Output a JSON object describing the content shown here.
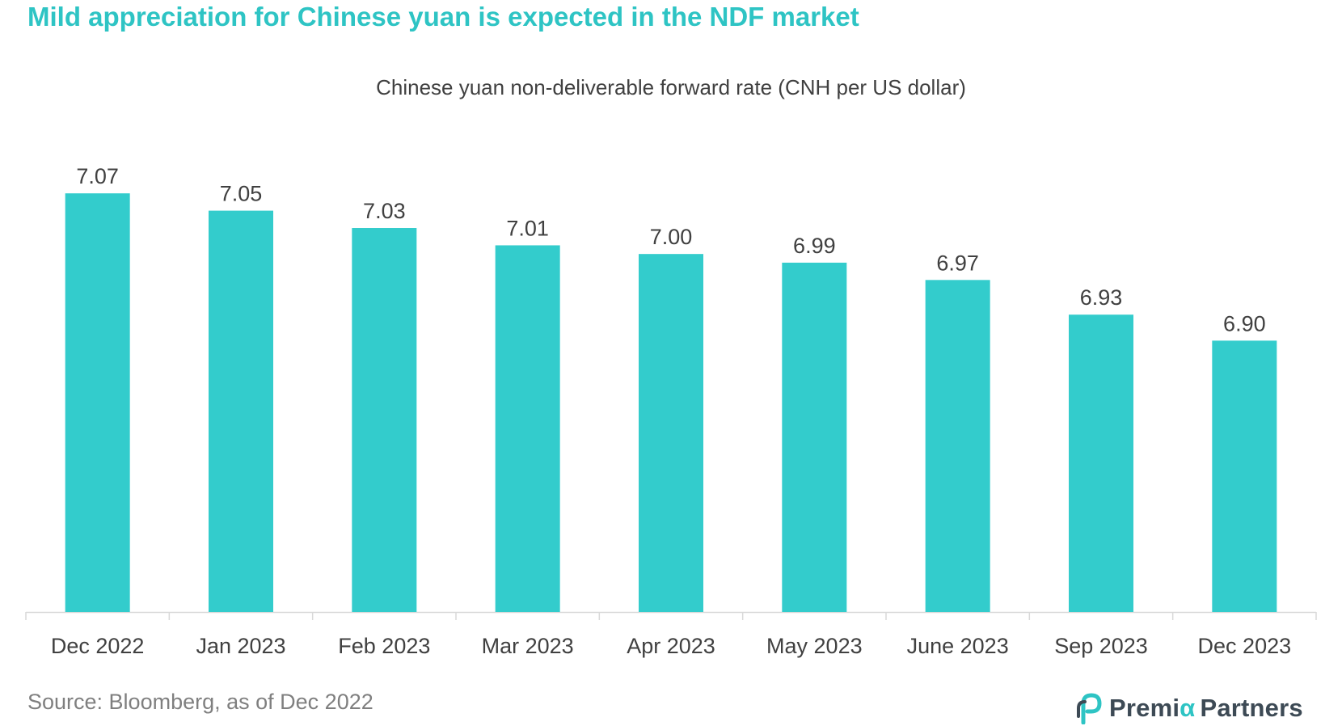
{
  "header": {
    "title": "Mild appreciation for Chinese yuan is expected in the NDF market"
  },
  "chart_data": {
    "type": "bar",
    "title": "Chinese yuan non-deliverable forward rate (CNH per US dollar)",
    "categories": [
      "Dec 2022",
      "Jan 2023",
      "Feb 2023",
      "Mar 2023",
      "Apr 2023",
      "May 2023",
      "June 2023",
      "Sep 2023",
      "Dec 2023"
    ],
    "values": [
      7.07,
      7.05,
      7.03,
      7.01,
      7.0,
      6.99,
      6.97,
      6.93,
      6.9
    ],
    "value_labels": [
      "7.07",
      "7.05",
      "7.03",
      "7.01",
      "7.00",
      "6.99",
      "6.97",
      "6.93",
      "6.90"
    ],
    "xlabel": "",
    "ylabel": "",
    "ylim": [
      6.5868,
      7.1
    ],
    "grid": false,
    "legend": "none",
    "bar_color": "#33cccc"
  },
  "footer": {
    "source": "Source: Bloomberg, as of Dec 2022",
    "logo_text_a": "Premi",
    "logo_text_alpha": "α",
    "logo_text_b": "Partners"
  },
  "colors": {
    "accent": "#2ec4c4",
    "bar": "#33cccc",
    "label": "#404040",
    "axis": "#d9d9d9",
    "source": "#7f7f7f",
    "logo": "#3d4a55"
  }
}
